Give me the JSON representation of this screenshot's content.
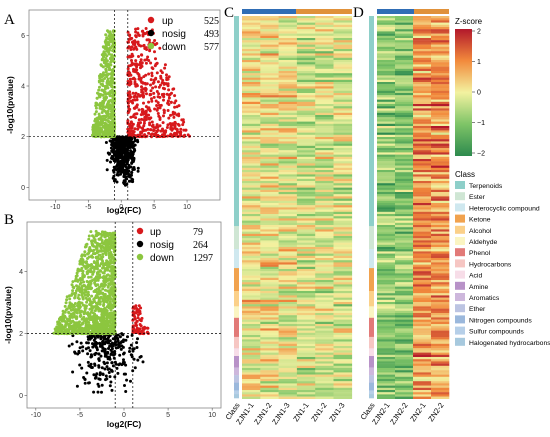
{
  "panels": {
    "a": "A",
    "b": "B",
    "c": "C",
    "d": "D"
  },
  "chart_data": [
    {
      "id": "A",
      "type": "scatter",
      "xlabel": "log2(FC)",
      "ylabel": "-log10(pvalue)",
      "xlim": [
        -14,
        15
      ],
      "ylim": [
        -0.5,
        7
      ],
      "xticks": [
        -10,
        -5,
        0,
        5,
        10
      ],
      "yticks": [
        0,
        2,
        4,
        6
      ],
      "thresholds": {
        "x": [
          -1,
          1
        ],
        "y": 2
      },
      "grid": false,
      "legend_position": "top-right",
      "legend": [
        {
          "name": "up",
          "count": "525",
          "color": "#d7191c"
        },
        {
          "name": "nosig",
          "count": "493",
          "color": "#000000"
        },
        {
          "name": "down",
          "count": "577",
          "color": "#8cc63f"
        }
      ],
      "series": [
        {
          "name": "up",
          "n": 525,
          "x_range": [
            1,
            10.5
          ],
          "y_range": [
            2,
            6.3
          ]
        },
        {
          "name": "nosig",
          "n": 493,
          "x_range": [
            -2.5,
            3
          ],
          "y_range": [
            0,
            2
          ]
        },
        {
          "name": "down",
          "n": 577,
          "x_range": [
            -4.5,
            -1
          ],
          "y_range": [
            2,
            6.2
          ]
        }
      ]
    },
    {
      "id": "B",
      "type": "scatter",
      "xlabel": "log2(FC)",
      "ylabel": "-log10(pvalue)",
      "xlim": [
        -11,
        11
      ],
      "ylim": [
        -0.4,
        5.6
      ],
      "xticks": [
        -10,
        -5,
        0,
        5,
        10
      ],
      "yticks": [
        0,
        2,
        4
      ],
      "thresholds": {
        "x": [
          -1,
          1
        ],
        "y": 2
      },
      "grid": false,
      "legend_position": "top-right",
      "legend": [
        {
          "name": "up",
          "count": "79",
          "color": "#d7191c"
        },
        {
          "name": "nosig",
          "count": "264",
          "color": "#000000"
        },
        {
          "name": "down",
          "count": "1297",
          "color": "#8cc63f"
        }
      ],
      "series": [
        {
          "name": "up",
          "n": 79,
          "x_range": [
            1,
            3
          ],
          "y_range": [
            2,
            2.9
          ]
        },
        {
          "name": "nosig",
          "n": 264,
          "x_range": [
            -7,
            3
          ],
          "y_range": [
            0,
            2
          ]
        },
        {
          "name": "down",
          "n": 1297,
          "x_range": [
            -8,
            -1
          ],
          "y_range": [
            2,
            5.3
          ]
        }
      ]
    },
    {
      "id": "C",
      "type": "heatmap",
      "columns": [
        "Class",
        "ZJN1-1",
        "ZJN1-2",
        "ZJN1-3",
        "ZN1-1",
        "ZN1-2",
        "ZN1-3"
      ],
      "groups": [
        {
          "span": [
            1,
            3
          ],
          "color": "#2f6db5"
        },
        {
          "span": [
            4,
            6
          ],
          "color": "#e0913a"
        }
      ]
    },
    {
      "id": "D",
      "type": "heatmap",
      "columns": [
        "Class",
        "ZJN2-1",
        "ZJN2-2",
        "ZN2-1",
        "ZN2-2"
      ],
      "groups": [
        {
          "span": [
            1,
            2
          ],
          "color": "#2f6db5"
        },
        {
          "span": [
            3,
            4
          ],
          "color": "#e0913a"
        }
      ]
    }
  ],
  "colorbar": {
    "title": "Z-score",
    "ticks": [
      "2",
      "1",
      "0",
      "−1",
      "−2"
    ],
    "stops": [
      "#2d8a4e",
      "#7ec467",
      "#f3f2a0",
      "#f28a3c",
      "#b2182b"
    ]
  },
  "class_legend": {
    "title": "Class",
    "items": [
      {
        "label": "Terpenoids",
        "color": "#8ecfc9"
      },
      {
        "label": "Ester",
        "color": "#cfe6d4"
      },
      {
        "label": "Heterocyclic compound",
        "color": "#cfe8ef"
      },
      {
        "label": "Ketone",
        "color": "#f1a24e"
      },
      {
        "label": "Alcohol",
        "color": "#fbd089"
      },
      {
        "label": "Aldehyde",
        "color": "#fbf5c2"
      },
      {
        "label": "Phenol",
        "color": "#e27a78"
      },
      {
        "label": "Hydrocarbons",
        "color": "#f6c6c3"
      },
      {
        "label": "Acid",
        "color": "#f7dde8"
      },
      {
        "label": "Amine",
        "color": "#b892c8"
      },
      {
        "label": "Aromatics",
        "color": "#cdb7dc"
      },
      {
        "label": "Ether",
        "color": "#bcc4e2"
      },
      {
        "label": "Nitrogen compounds",
        "color": "#9bb8dc"
      },
      {
        "label": "Sulfur compounds",
        "color": "#b6cfe8"
      },
      {
        "label": "Halogenated hydrocarbons",
        "color": "#a7c9de"
      }
    ]
  }
}
